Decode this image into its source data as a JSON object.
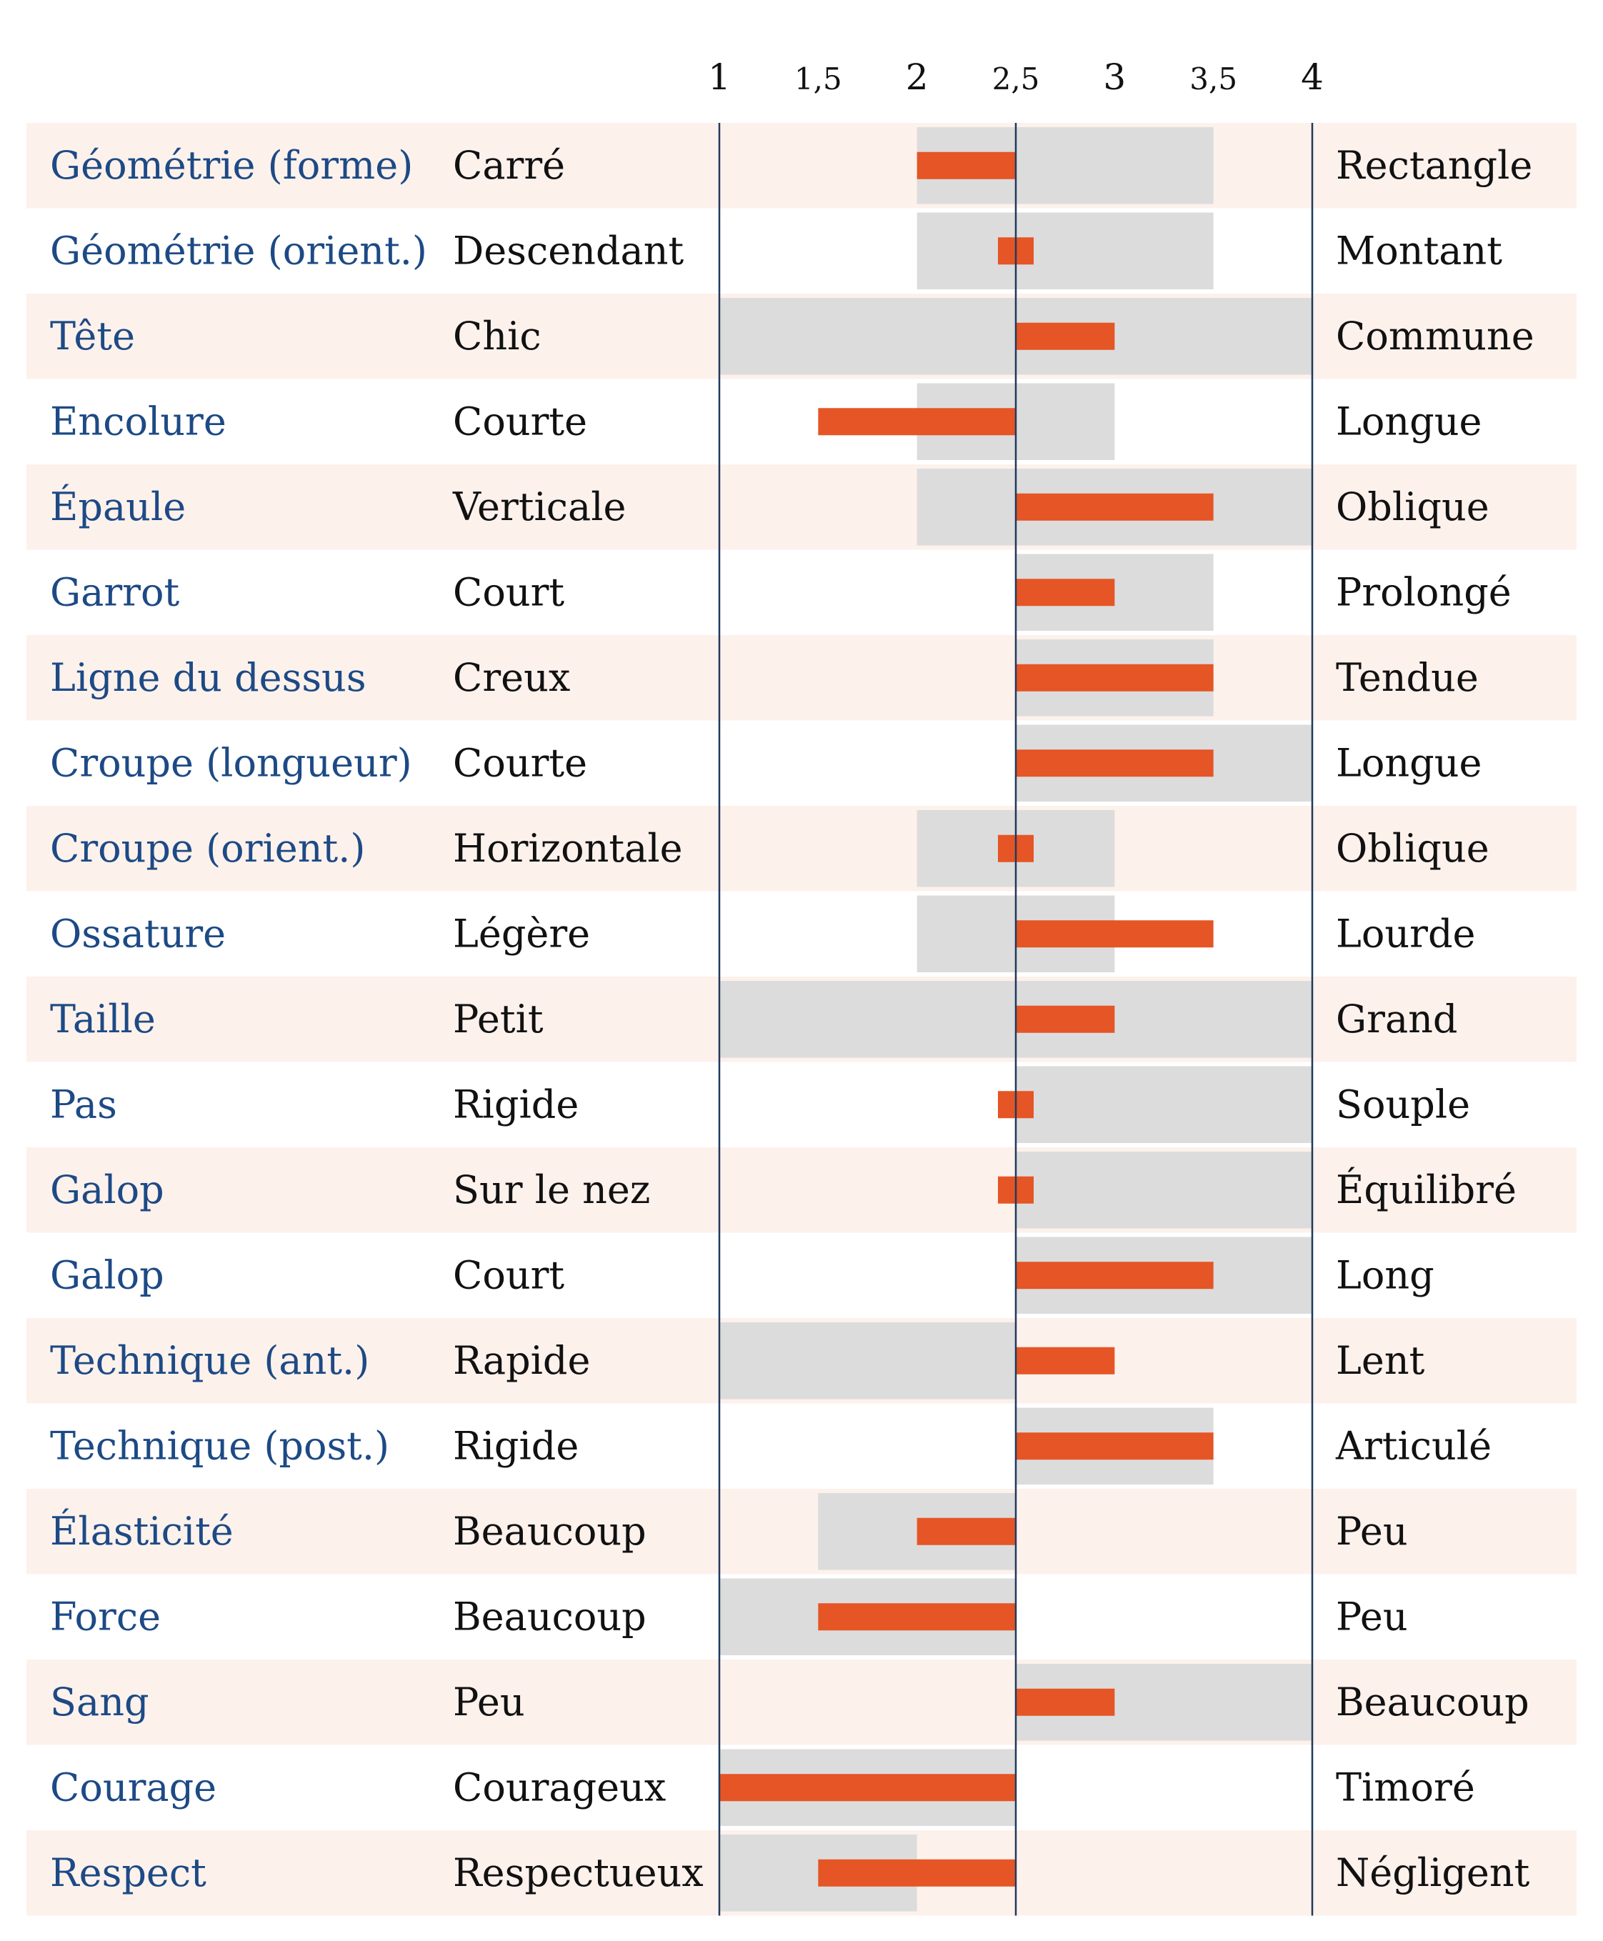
{
  "colors": {
    "row_band": "#fdf1ec",
    "range_bar": "#dcdcdc",
    "score_bar": "#e55525",
    "axis_line": "#1f3a5f",
    "trait_text": "#1d4a85",
    "pole_text": "#111111"
  },
  "chart_data": {
    "type": "bar",
    "title": "",
    "xlim": [
      1,
      4
    ],
    "reference_value": 2.5,
    "ticks": [
      {
        "value": 1,
        "label": "1"
      },
      {
        "value": 1.5,
        "label": "1,5"
      },
      {
        "value": 2,
        "label": "2"
      },
      {
        "value": 2.5,
        "label": "2,5"
      },
      {
        "value": 3,
        "label": "3"
      },
      {
        "value": 3.5,
        "label": "3,5"
      },
      {
        "value": 4,
        "label": "4"
      }
    ],
    "rows": [
      {
        "trait": "Géométrie (forme)",
        "left": "Carré",
        "right": "Rectangle",
        "range": [
          2,
          3.5
        ],
        "score": 2
      },
      {
        "trait": "Géométrie (orient.)",
        "left": "Descendant",
        "right": "Montant",
        "range": [
          2,
          3.5
        ],
        "score": 2.5
      },
      {
        "trait": "Tête",
        "left": "Chic",
        "right": "Commune",
        "range": [
          1,
          4
        ],
        "score": 3
      },
      {
        "trait": "Encolure",
        "left": "Courte",
        "right": "Longue",
        "range": [
          2,
          3
        ],
        "score": 1.5
      },
      {
        "trait": "Épaule",
        "left": "Verticale",
        "right": "Oblique",
        "range": [
          2,
          4
        ],
        "score": 3.5
      },
      {
        "trait": "Garrot",
        "left": "Court",
        "right": "Prolongé",
        "range": [
          2.5,
          3.5
        ],
        "score": 3
      },
      {
        "trait": "Ligne du dessus",
        "left": "Creux",
        "right": "Tendue",
        "range": [
          2.5,
          3.5
        ],
        "score": 3.5
      },
      {
        "trait": "Croupe (longueur)",
        "left": "Courte",
        "right": "Longue",
        "range": [
          2.5,
          4
        ],
        "score": 3.5
      },
      {
        "trait": "Croupe (orient.)",
        "left": "Horizontale",
        "right": "Oblique",
        "range": [
          2,
          3
        ],
        "score": 2.5
      },
      {
        "trait": "Ossature",
        "left": "Légère",
        "right": "Lourde",
        "range": [
          2,
          3
        ],
        "score": 3.5
      },
      {
        "trait": "Taille",
        "left": "Petit",
        "right": "Grand",
        "range": [
          1,
          4
        ],
        "score": 3
      },
      {
        "trait": "Pas",
        "left": "Rigide",
        "right": "Souple",
        "range": [
          2.5,
          4
        ],
        "score": 2.5
      },
      {
        "trait": "Galop",
        "left": "Sur le nez",
        "right": "Équilibré",
        "range": [
          2.5,
          4
        ],
        "score": 2.5
      },
      {
        "trait": "Galop",
        "left": "Court",
        "right": "Long",
        "range": [
          2.5,
          4
        ],
        "score": 3.5
      },
      {
        "trait": "Technique (ant.)",
        "left": "Rapide",
        "right": "Lent",
        "range": [
          1,
          2.5
        ],
        "score": 3
      },
      {
        "trait": "Technique (post.)",
        "left": "Rigide",
        "right": "Articulé",
        "range": [
          2.5,
          3.5
        ],
        "score": 3.5
      },
      {
        "trait": "Élasticité",
        "left": "Beaucoup",
        "right": "Peu",
        "range": [
          1.5,
          2.5
        ],
        "score": 2
      },
      {
        "trait": "Force",
        "left": "Beaucoup",
        "right": "Peu",
        "range": [
          1,
          2.5
        ],
        "score": 1.5
      },
      {
        "trait": "Sang",
        "left": "Peu",
        "right": "Beaucoup",
        "range": [
          2.5,
          4
        ],
        "score": 3
      },
      {
        "trait": "Courage",
        "left": "Courageux",
        "right": "Timoré",
        "range": [
          1,
          2.5
        ],
        "score": 1
      },
      {
        "trait": "Respect",
        "left": "Respectueux",
        "right": "Négligent",
        "range": [
          1,
          2
        ],
        "score": 1.5
      }
    ]
  }
}
